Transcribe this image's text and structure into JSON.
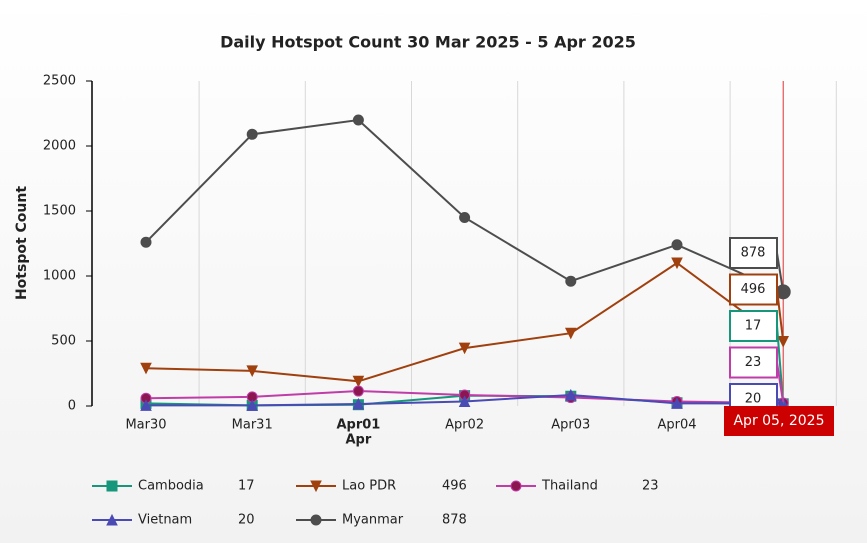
{
  "chart_data": {
    "type": "line",
    "title": "Daily Hotspot Count 30 Mar 2025 - 5 Apr 2025",
    "y_label": "Hotspot Count",
    "categories": [
      "Mar30",
      "Mar31",
      "Apr01",
      "Apr02",
      "Apr03",
      "Apr04",
      null
    ],
    "x_sublabels": [
      null,
      null,
      "Apr",
      null,
      null,
      null,
      null
    ],
    "ylim": [
      0,
      2500
    ],
    "yticks": [
      0,
      500,
      1000,
      1500,
      2000,
      2500
    ],
    "grid_x": true,
    "tooltip_title": "Apr 05, 2025",
    "series": [
      {
        "name": "Cambodia",
        "color": "#16967a",
        "marker": "square",
        "values": [
          20,
          5,
          10,
          80,
          75,
          25,
          17
        ]
      },
      {
        "name": "Lao PDR",
        "color": "#a0400e",
        "marker": "triangle-down",
        "values": [
          290,
          270,
          190,
          445,
          560,
          1100,
          496
        ]
      },
      {
        "name": "Thailand",
        "color": "#c03ca8",
        "marker": "circle",
        "values": [
          60,
          70,
          115,
          85,
          65,
          35,
          23
        ]
      },
      {
        "name": "Vietnam",
        "color": "#4a4ab4",
        "marker": "triangle-up",
        "values": [
          5,
          5,
          15,
          35,
          85,
          20,
          20
        ]
      },
      {
        "name": "Myanmar",
        "color": "#4d4d4d",
        "marker": "circle",
        "values": [
          1260,
          2090,
          2200,
          1450,
          960,
          1240,
          878
        ]
      }
    ]
  }
}
